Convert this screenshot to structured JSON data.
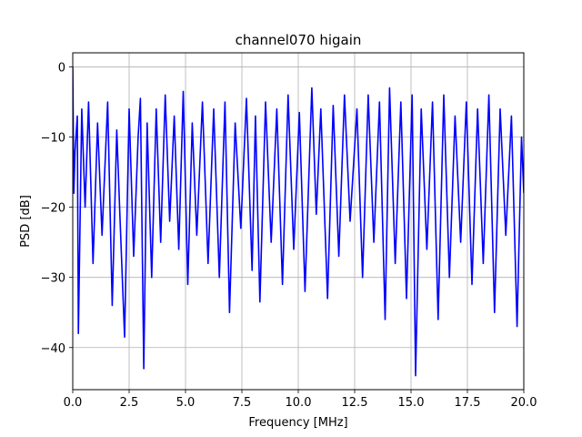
{
  "chart_data": {
    "type": "line",
    "title": "channel070 higain",
    "xlabel": "Frequency [MHz]",
    "ylabel": "PSD [dB]",
    "xlim": [
      0,
      20
    ],
    "ylim": [
      -46,
      2
    ],
    "xticks": [
      0,
      2.5,
      5,
      7.5,
      10,
      12.5,
      15,
      17.5,
      20
    ],
    "xtick_labels": [
      "0.0",
      "2.5",
      "5.0",
      "7.5",
      "10.0",
      "12.5",
      "15.0",
      "17.5",
      "20.0"
    ],
    "yticks": [
      0,
      -10,
      -20,
      -30,
      -40
    ],
    "ytick_labels": [
      "0",
      "−10",
      "−20",
      "−30",
      "−40"
    ],
    "grid": true,
    "series": [
      {
        "color": "#0000ff",
        "x": [
          0.0,
          0.05,
          0.1,
          0.2,
          0.25,
          0.4,
          0.55,
          0.7,
          0.9,
          1.1,
          1.3,
          1.55,
          1.75,
          1.95,
          2.1,
          2.3,
          2.5,
          2.7,
          2.9,
          3.0,
          3.15,
          3.3,
          3.5,
          3.7,
          3.9,
          4.1,
          4.3,
          4.5,
          4.7,
          4.9,
          5.1,
          5.3,
          5.5,
          5.75,
          6.0,
          6.25,
          6.5,
          6.75,
          6.95,
          7.2,
          7.45,
          7.7,
          7.95,
          8.1,
          8.3,
          8.55,
          8.8,
          9.05,
          9.3,
          9.55,
          9.8,
          10.05,
          10.3,
          10.6,
          10.8,
          11.0,
          11.3,
          11.55,
          11.8,
          12.05,
          12.3,
          12.6,
          12.85,
          13.1,
          13.35,
          13.6,
          13.85,
          14.05,
          14.3,
          14.55,
          14.8,
          15.05,
          15.2,
          15.45,
          15.7,
          15.95,
          16.2,
          16.45,
          16.7,
          16.95,
          17.2,
          17.45,
          17.7,
          17.95,
          18.2,
          18.45,
          18.7,
          18.95,
          19.2,
          19.45,
          19.7,
          19.9,
          20.0
        ],
        "y": [
          0,
          -18,
          -12,
          -7,
          -38,
          -6,
          -20,
          -5,
          -28,
          -8,
          -24,
          -5,
          -34,
          -9,
          -22,
          -38.5,
          -6,
          -27,
          -10,
          -4.5,
          -43,
          -8,
          -30,
          -6,
          -25,
          -4,
          -22,
          -7,
          -26,
          -3.5,
          -31,
          -8,
          -24,
          -5,
          -28,
          -6,
          -30,
          -5,
          -35,
          -8,
          -23,
          -4.5,
          -29,
          -7,
          -33.5,
          -5,
          -25,
          -6,
          -31,
          -4,
          -26,
          -6.5,
          -32,
          -3,
          -21,
          -6,
          -33,
          -5.5,
          -27,
          -4,
          -22,
          -6,
          -30,
          -4,
          -25,
          -5,
          -36,
          -3,
          -28,
          -5,
          -33,
          -4,
          -44,
          -6,
          -26,
          -5,
          -36,
          -4,
          -30,
          -7,
          -25,
          -5,
          -31,
          -6,
          -28,
          -4,
          -35,
          -6,
          -24,
          -7,
          -37,
          -10,
          -18
        ]
      }
    ]
  }
}
